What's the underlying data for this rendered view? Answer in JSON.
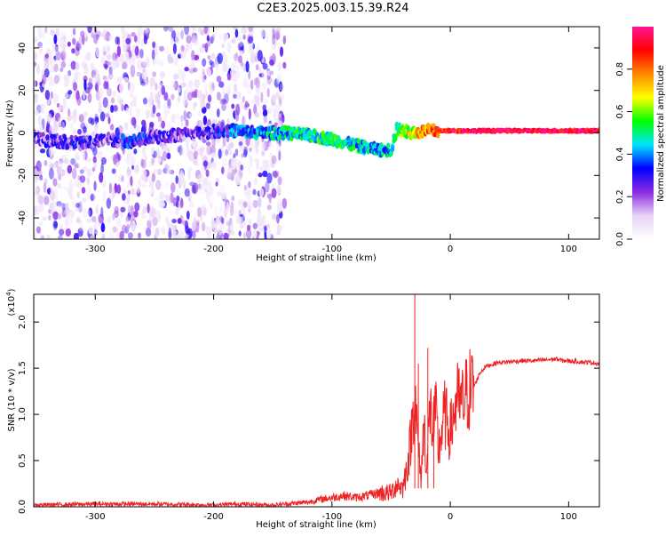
{
  "title": "C2E3.2025.003.15.39.R24",
  "chart_data": [
    {
      "type": "heatmap",
      "xlabel": "Height of straight line (km)",
      "ylabel": "Frequency (Hz)",
      "xlim": [
        -352,
        126
      ],
      "ylim": [
        -50,
        50
      ],
      "x_ticks": [
        -300,
        -200,
        -100,
        0,
        100
      ],
      "y_ticks": [
        -40,
        -20,
        0,
        20,
        40
      ],
      "colorbar": {
        "label": "Normalized spectral amplitude",
        "range": [
          0,
          1
        ],
        "ticks": [
          "0.0",
          "0.2",
          "0.4",
          "0.6",
          "0.8"
        ],
        "tick_values": [
          0.0,
          0.2,
          0.4,
          0.6,
          0.8
        ],
        "colors": [
          "#ffffff",
          "#e6d2f5",
          "#8a2be2",
          "#0000ff",
          "#00e5ff",
          "#00ff00",
          "#ffff00",
          "#ff8800",
          "#ff0000",
          "#ff1493"
        ]
      },
      "noise_region": {
        "x_range": [
          -352,
          -140
        ],
        "y_range": [
          -50,
          50
        ]
      },
      "ridge": {
        "x": [
          -350,
          -330,
          -310,
          -290,
          -270,
          -250,
          -230,
          -210,
          -195,
          -180,
          -160,
          -140,
          -120,
          -100,
          -80,
          -60,
          -50,
          -45,
          -40,
          -30,
          -20,
          -10,
          0,
          20,
          60,
          100,
          126
        ],
        "y": [
          -3,
          -4,
          -5,
          -3,
          -4,
          -2,
          -1,
          0,
          1,
          1,
          0,
          0,
          -1,
          -3,
          -6,
          -8,
          -8,
          2,
          1,
          0,
          1,
          1,
          1,
          1,
          1,
          1,
          1
        ],
        "amplitude": [
          0.2,
          0.25,
          0.25,
          0.2,
          0.3,
          0.25,
          0.2,
          0.2,
          0.3,
          0.35,
          0.4,
          0.45,
          0.5,
          0.5,
          0.45,
          0.4,
          0.45,
          0.5,
          0.6,
          0.7,
          0.8,
          0.85,
          0.9,
          0.95,
          0.95,
          0.95,
          0.95
        ]
      }
    },
    {
      "type": "line",
      "xlabel": "Height of straight line (km)",
      "ylabel": "SNR (10 * v/v)",
      "y_multiplier": "(x10",
      "y_multiplier_exp": "4",
      "xlim": [
        -352,
        126
      ],
      "ylim": [
        0,
        2.3
      ],
      "x_ticks": [
        -300,
        -200,
        -100,
        0,
        100
      ],
      "y_ticks": [
        "0.0",
        "0.5",
        "1.0",
        "1.5",
        "2.0"
      ],
      "y_tick_values": [
        0.0,
        0.5,
        1.0,
        1.5,
        2.0
      ],
      "color": "#ee2222",
      "series": [
        {
          "x": [
            -352,
            -300,
            -250,
            -200,
            -180,
            -150,
            -120,
            -110,
            -100,
            -90,
            -80,
            -70,
            -60,
            -50,
            -45,
            -40,
            -35,
            -32,
            -30,
            -28,
            -25,
            -22,
            -20,
            -17,
            -15,
            -12,
            -10,
            -5,
            0,
            5,
            10,
            15,
            20,
            25,
            30,
            40,
            50,
            60,
            70,
            80,
            90,
            95,
            100,
            110,
            120,
            126
          ],
          "y": [
            0.02,
            0.03,
            0.03,
            0.02,
            0.03,
            0.02,
            0.05,
            0.08,
            0.1,
            0.12,
            0.1,
            0.12,
            0.15,
            0.15,
            0.25,
            0.2,
            0.55,
            0.9,
            1.3,
            0.8,
            0.3,
            0.9,
            0.4,
            1.1,
            0.8,
            1.0,
            0.6,
            1.0,
            0.8,
            1.15,
            1.1,
            1.25,
            1.3,
            1.45,
            1.52,
            1.56,
            1.57,
            1.58,
            1.58,
            1.59,
            1.6,
            1.58,
            1.58,
            1.57,
            1.56,
            1.55
          ]
        }
      ]
    }
  ]
}
